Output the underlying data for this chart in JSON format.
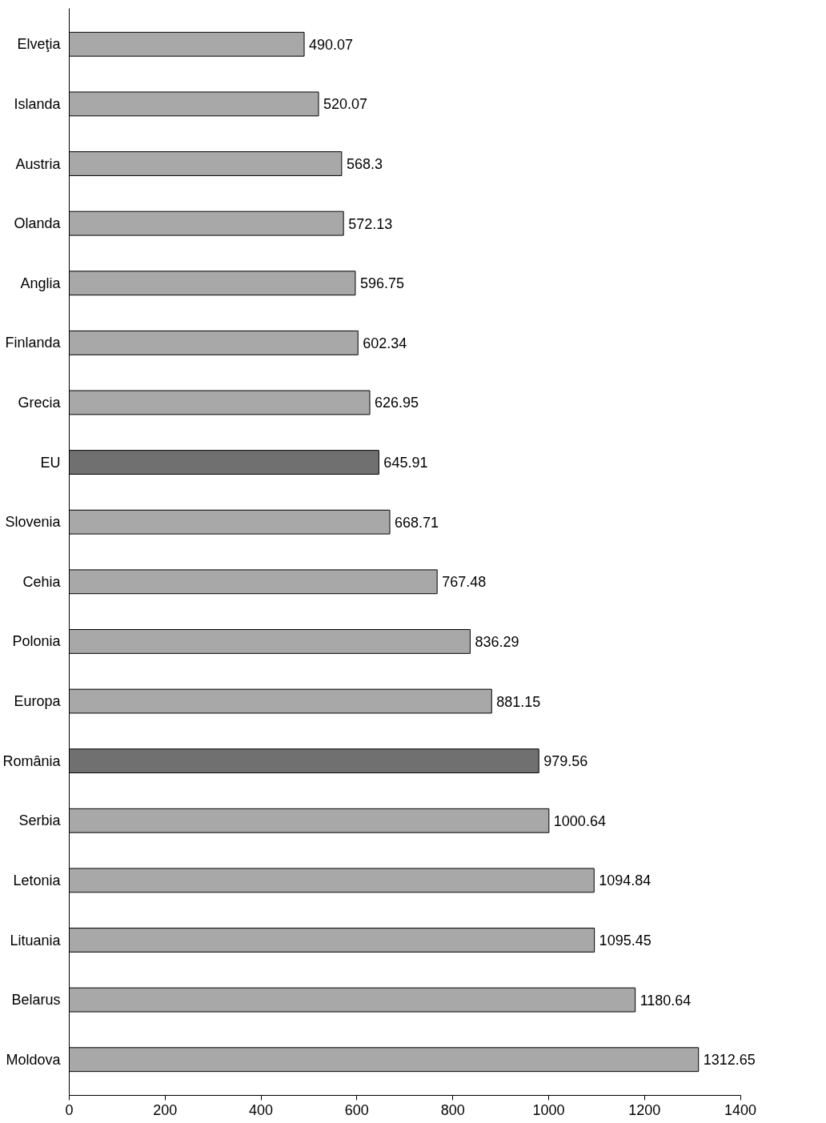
{
  "chart_data": {
    "type": "bar",
    "orientation": "horizontal",
    "categories": [
      "Elveţia",
      "Islanda",
      "Austria",
      "Olanda",
      "Anglia",
      "Finlanda",
      "Grecia",
      "EU",
      "Slovenia",
      "Cehia",
      "Polonia",
      "Europa",
      "România",
      "Serbia",
      "Letonia",
      "Lituania",
      "Belarus",
      "Moldova"
    ],
    "values": [
      490.07,
      520.07,
      568.3,
      572.13,
      596.75,
      602.34,
      626.95,
      645.91,
      668.71,
      767.48,
      836.29,
      881.15,
      979.56,
      1000.64,
      1094.84,
      1095.45,
      1180.64,
      1312.65
    ],
    "colors": [
      "#a8a8a8",
      "#a8a8a8",
      "#a8a8a8",
      "#a8a8a8",
      "#a8a8a8",
      "#a8a8a8",
      "#a8a8a8",
      "#707070",
      "#a8a8a8",
      "#a8a8a8",
      "#a8a8a8",
      "#a8a8a8",
      "#707070",
      "#a8a8a8",
      "#a8a8a8",
      "#a8a8a8",
      "#a8a8a8",
      "#a8a8a8"
    ],
    "xlim": [
      0,
      1400
    ],
    "xticks": [
      0,
      200,
      400,
      600,
      800,
      1000,
      1200,
      1400
    ],
    "data_labels": true,
    "grid": false
  }
}
